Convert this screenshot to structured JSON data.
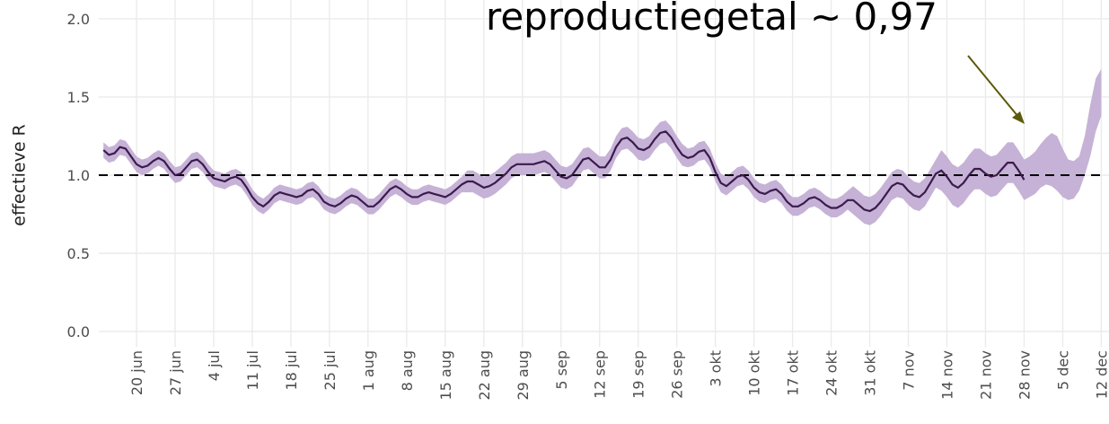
{
  "chart_data": {
    "type": "line",
    "annotation": "reproductiegetal ~ 0,97",
    "y_label": "effectieve R",
    "categories": [
      null,
      null,
      null,
      null,
      null,
      null,
      "20 jun",
      null,
      null,
      null,
      null,
      null,
      null,
      "27 jun",
      null,
      null,
      null,
      null,
      null,
      null,
      "4 jul",
      null,
      null,
      null,
      null,
      null,
      null,
      "11 jul",
      null,
      null,
      null,
      null,
      null,
      null,
      "18 jul",
      null,
      null,
      null,
      null,
      null,
      null,
      "25 jul",
      null,
      null,
      null,
      null,
      null,
      null,
      "1 aug",
      null,
      null,
      null,
      null,
      null,
      null,
      "8 aug",
      null,
      null,
      null,
      null,
      null,
      null,
      "15 aug",
      null,
      null,
      null,
      null,
      null,
      null,
      "22 aug",
      null,
      null,
      null,
      null,
      null,
      null,
      "29 aug",
      null,
      null,
      null,
      null,
      null,
      null,
      "5 sep",
      null,
      null,
      null,
      null,
      null,
      null,
      "12 sep",
      null,
      null,
      null,
      null,
      null,
      null,
      "19 sep",
      null,
      null,
      null,
      null,
      null,
      null,
      "26 sep",
      null,
      null,
      null,
      null,
      null,
      null,
      "3 okt",
      null,
      null,
      null,
      null,
      null,
      null,
      "10 okt",
      null,
      null,
      null,
      null,
      null,
      null,
      "17 okt",
      null,
      null,
      null,
      null,
      null,
      null,
      "24 okt",
      null,
      null,
      null,
      null,
      null,
      null,
      "31 okt",
      null,
      null,
      null,
      null,
      null,
      null,
      "7 nov",
      null,
      null,
      null,
      null,
      null,
      null,
      "14 nov",
      null,
      null,
      null,
      null,
      null,
      null,
      "21 nov",
      null,
      null,
      null,
      null,
      null,
      null,
      "28 nov",
      null,
      null,
      null,
      null,
      null,
      null,
      "5 dec",
      null,
      null,
      null,
      null,
      null,
      null,
      "12 dec"
    ],
    "values": [
      1.16,
      1.13,
      1.14,
      1.18,
      1.17,
      1.12,
      1.07,
      1.05,
      1.06,
      1.09,
      1.11,
      1.09,
      1.04,
      1.0,
      1.01,
      1.05,
      1.09,
      1.1,
      1.07,
      1.02,
      0.98,
      0.97,
      0.96,
      0.98,
      0.99,
      0.97,
      0.92,
      0.86,
      0.82,
      0.8,
      0.83,
      0.87,
      0.89,
      0.88,
      0.87,
      0.86,
      0.87,
      0.9,
      0.91,
      0.88,
      0.83,
      0.81,
      0.8,
      0.82,
      0.85,
      0.87,
      0.86,
      0.83,
      0.8,
      0.8,
      0.83,
      0.87,
      0.91,
      0.93,
      0.91,
      0.88,
      0.86,
      0.86,
      0.88,
      0.89,
      0.88,
      0.87,
      0.86,
      0.88,
      0.91,
      0.94,
      0.96,
      0.96,
      0.94,
      0.92,
      0.93,
      0.95,
      0.98,
      1.01,
      1.05,
      1.07,
      1.07,
      1.07,
      1.07,
      1.08,
      1.09,
      1.07,
      1.03,
      0.99,
      0.98,
      1.0,
      1.05,
      1.1,
      1.11,
      1.08,
      1.05,
      1.05,
      1.1,
      1.18,
      1.23,
      1.24,
      1.21,
      1.17,
      1.16,
      1.18,
      1.23,
      1.27,
      1.28,
      1.24,
      1.18,
      1.13,
      1.11,
      1.12,
      1.15,
      1.16,
      1.11,
      1.02,
      0.95,
      0.93,
      0.96,
      0.99,
      1.0,
      0.97,
      0.92,
      0.89,
      0.88,
      0.9,
      0.91,
      0.88,
      0.83,
      0.8,
      0.8,
      0.82,
      0.85,
      0.86,
      0.84,
      0.81,
      0.79,
      0.79,
      0.81,
      0.84,
      0.84,
      0.81,
      0.78,
      0.77,
      0.79,
      0.83,
      0.88,
      0.93,
      0.95,
      0.94,
      0.9,
      0.87,
      0.86,
      0.89,
      0.95,
      1.01,
      1.03,
      0.99,
      0.94,
      0.92,
      0.95,
      1.0,
      1.04,
      1.04,
      1.01,
      0.99,
      1.0,
      1.04,
      1.08,
      1.08,
      1.03,
      0.97,
      null,
      null,
      null,
      null,
      null,
      null,
      null,
      null,
      null,
      null,
      null,
      null,
      null,
      null
    ],
    "upper": [
      1.21,
      1.18,
      1.19,
      1.23,
      1.22,
      1.17,
      1.12,
      1.1,
      1.11,
      1.14,
      1.16,
      1.14,
      1.09,
      1.05,
      1.06,
      1.1,
      1.14,
      1.15,
      1.12,
      1.07,
      1.03,
      1.02,
      1.01,
      1.03,
      1.04,
      1.02,
      0.97,
      0.91,
      0.87,
      0.85,
      0.88,
      0.92,
      0.94,
      0.93,
      0.92,
      0.91,
      0.92,
      0.95,
      0.96,
      0.93,
      0.88,
      0.86,
      0.85,
      0.87,
      0.9,
      0.92,
      0.91,
      0.88,
      0.85,
      0.85,
      0.88,
      0.92,
      0.96,
      0.98,
      0.96,
      0.93,
      0.91,
      0.91,
      0.93,
      0.94,
      0.93,
      0.92,
      0.91,
      0.93,
      0.96,
      0.99,
      1.03,
      1.03,
      1.01,
      0.99,
      1.0,
      1.02,
      1.05,
      1.08,
      1.12,
      1.14,
      1.14,
      1.14,
      1.14,
      1.15,
      1.16,
      1.14,
      1.1,
      1.06,
      1.05,
      1.07,
      1.12,
      1.17,
      1.18,
      1.15,
      1.12,
      1.12,
      1.17,
      1.25,
      1.3,
      1.31,
      1.28,
      1.24,
      1.23,
      1.25,
      1.3,
      1.34,
      1.35,
      1.31,
      1.25,
      1.2,
      1.17,
      1.18,
      1.21,
      1.22,
      1.17,
      1.08,
      1.01,
      0.99,
      1.02,
      1.05,
      1.06,
      1.03,
      0.98,
      0.95,
      0.94,
      0.96,
      0.97,
      0.94,
      0.89,
      0.86,
      0.86,
      0.88,
      0.91,
      0.92,
      0.9,
      0.87,
      0.85,
      0.85,
      0.87,
      0.9,
      0.93,
      0.9,
      0.87,
      0.86,
      0.88,
      0.92,
      0.97,
      1.02,
      1.04,
      1.03,
      0.99,
      0.96,
      0.95,
      0.98,
      1.04,
      1.1,
      1.16,
      1.12,
      1.07,
      1.05,
      1.08,
      1.13,
      1.17,
      1.17,
      1.14,
      1.12,
      1.13,
      1.17,
      1.21,
      1.21,
      1.16,
      1.1,
      1.12,
      1.15,
      1.2,
      1.24,
      1.27,
      1.25,
      1.17,
      1.1,
      1.09,
      1.12,
      1.25,
      1.45,
      1.62,
      1.68
    ],
    "lower": [
      1.11,
      1.08,
      1.09,
      1.13,
      1.12,
      1.07,
      1.02,
      1.0,
      1.01,
      1.04,
      1.06,
      1.04,
      0.99,
      0.95,
      0.96,
      1.0,
      1.04,
      1.05,
      1.02,
      0.97,
      0.93,
      0.92,
      0.91,
      0.93,
      0.94,
      0.92,
      0.87,
      0.81,
      0.77,
      0.75,
      0.78,
      0.82,
      0.84,
      0.83,
      0.82,
      0.81,
      0.82,
      0.85,
      0.86,
      0.83,
      0.78,
      0.76,
      0.75,
      0.77,
      0.8,
      0.82,
      0.81,
      0.78,
      0.75,
      0.75,
      0.78,
      0.82,
      0.86,
      0.88,
      0.86,
      0.83,
      0.81,
      0.81,
      0.83,
      0.84,
      0.83,
      0.82,
      0.81,
      0.83,
      0.86,
      0.89,
      0.89,
      0.89,
      0.87,
      0.85,
      0.86,
      0.88,
      0.91,
      0.94,
      0.98,
      1.0,
      1.0,
      1.0,
      1.0,
      1.01,
      1.02,
      1.0,
      0.96,
      0.92,
      0.91,
      0.93,
      0.98,
      1.03,
      1.04,
      1.01,
      0.98,
      0.98,
      1.03,
      1.11,
      1.16,
      1.17,
      1.14,
      1.1,
      1.09,
      1.11,
      1.16,
      1.2,
      1.21,
      1.17,
      1.11,
      1.06,
      1.05,
      1.06,
      1.09,
      1.1,
      1.05,
      0.96,
      0.89,
      0.87,
      0.9,
      0.93,
      0.94,
      0.91,
      0.86,
      0.83,
      0.82,
      0.84,
      0.85,
      0.82,
      0.77,
      0.74,
      0.74,
      0.76,
      0.79,
      0.8,
      0.78,
      0.75,
      0.73,
      0.73,
      0.75,
      0.78,
      0.75,
      0.72,
      0.69,
      0.68,
      0.7,
      0.74,
      0.79,
      0.84,
      0.86,
      0.85,
      0.81,
      0.78,
      0.77,
      0.8,
      0.86,
      0.92,
      0.9,
      0.86,
      0.81,
      0.79,
      0.82,
      0.87,
      0.91,
      0.91,
      0.88,
      0.86,
      0.87,
      0.91,
      0.95,
      0.95,
      0.9,
      0.84,
      0.86,
      0.88,
      0.92,
      0.94,
      0.93,
      0.9,
      0.86,
      0.84,
      0.85,
      0.9,
      1.0,
      1.12,
      1.28,
      1.38
    ],
    "color": "#3b1b4d",
    "band_color": "#c6b2d6",
    "reference_line": 1,
    "ylim": [
      -0.1,
      2.12
    ],
    "yticks": [
      {
        "value": 0,
        "label": "0.0"
      },
      {
        "value": 0.5,
        "label": "0.5"
      },
      {
        "value": 1,
        "label": "1.0"
      },
      {
        "value": 1.5,
        "label": "1.5"
      },
      {
        "value": 2,
        "label": "2.0"
      }
    ],
    "grid": true
  }
}
